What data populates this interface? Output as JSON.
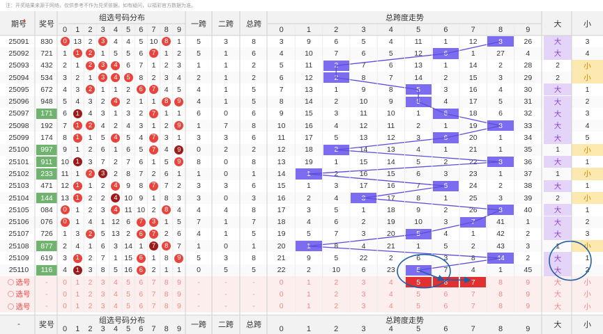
{
  "notice": "注：开奖结果来源于网络，仅供参考不作为兑奖依据，如有疑问，以福彩官方数据为准。",
  "header": {
    "issue": "期号",
    "prize": "奖号",
    "group_dist": "组选号码分布",
    "span1": "一跨",
    "span2": "二跨",
    "total_span": "总跨",
    "trend": "总跨度走势",
    "big": "大",
    "small": "小",
    "digits": [
      "0",
      "1",
      "2",
      "3",
      "4",
      "5",
      "6",
      "7",
      "8",
      "9"
    ],
    "trend_digits": [
      "0",
      "1",
      "2",
      "3",
      "4",
      "5",
      "6",
      "7",
      "8",
      "9"
    ],
    "sort_icon": "sort-arrows-icon"
  },
  "footer": {
    "dash": "-",
    "prize": "奖号",
    "group_dist": "组选号码分布",
    "span1": "一跨",
    "span2": "二跨",
    "total_span": "总跨",
    "trend": "总跨度走势",
    "big": "大",
    "small": "小",
    "digits": [
      "0",
      "1",
      "2",
      "3",
      "4",
      "5",
      "6",
      "7",
      "8",
      "9"
    ],
    "trend_digits": [
      "0",
      "1",
      "2",
      "3",
      "4",
      "5",
      "6",
      "7",
      "8",
      "9"
    ]
  },
  "selection_rows": {
    "label": "选号",
    "dash": "-",
    "digits": [
      "0",
      "1",
      "2",
      "3",
      "4",
      "5",
      "6",
      "7",
      "8",
      "9"
    ],
    "big": "大",
    "small": "小"
  },
  "rows": [
    {
      "issue": "25091",
      "prize": "830",
      "dist": [
        "0",
        "13",
        "2",
        "3",
        "4",
        "4",
        "5",
        "10",
        "8",
        "1"
      ],
      "balls": {
        "0": "red",
        "3": "red",
        "8": "red"
      },
      "s1": "5",
      "s2": "3",
      "ts": "8",
      "trend": [
        "3",
        "9",
        "6",
        "5",
        "4",
        "11",
        "1",
        "12",
        "8",
        "26"
      ],
      "tsval": 8,
      "big": "大",
      "small": "3",
      "bs": "big"
    },
    {
      "issue": "25092",
      "prize": "721",
      "dist": [
        "1",
        "1",
        "2",
        "1",
        "5",
        "5",
        "6",
        "7",
        "1",
        "2"
      ],
      "balls": {
        "1": "red",
        "2": "red",
        "7": "red"
      },
      "s1": "5",
      "s2": "1",
      "ts": "6",
      "trend": [
        "4",
        "10",
        "7",
        "6",
        "5",
        "12",
        "6",
        "1",
        "27",
        "4"
      ],
      "tsval": 6,
      "big": "大",
      "small": "4",
      "bs": "big"
    },
    {
      "issue": "25093",
      "prize": "432",
      "dist": [
        "2",
        "1",
        "2",
        "3",
        "4",
        "6",
        "7",
        "1",
        "2",
        "3"
      ],
      "balls": {
        "2": "red",
        "3": "red",
        "4": "red"
      },
      "s1": "1",
      "s2": "1",
      "ts": "2",
      "trend": [
        "5",
        "11",
        "2",
        "7",
        "6",
        "13",
        "1",
        "14",
        "2",
        "28"
      ],
      "tsval": 2,
      "big": "2",
      "small": "小",
      "bs": "small"
    },
    {
      "issue": "25094",
      "prize": "534",
      "dist": [
        "3",
        "2",
        "1",
        "3",
        "4",
        "5",
        "8",
        "2",
        "3",
        "4"
      ],
      "balls": {
        "3": "red",
        "4": "red",
        "5": "red"
      },
      "s1": "2",
      "s2": "1",
      "ts": "2",
      "trend": [
        "6",
        "12",
        "2",
        "8",
        "7",
        "14",
        "2",
        "15",
        "3",
        "29"
      ],
      "tsval": 2,
      "big": "2",
      "small": "小",
      "bs": "small"
    },
    {
      "issue": "25095",
      "prize": "672",
      "dist": [
        "4",
        "3",
        "2",
        "1",
        "1",
        "2",
        "6",
        "7",
        "4",
        "5"
      ],
      "balls": {
        "2": "red",
        "6": "red",
        "7": "red"
      },
      "s1": "4",
      "s2": "1",
      "ts": "5",
      "trend": [
        "7",
        "13",
        "1",
        "9",
        "8",
        "5",
        "3",
        "16",
        "4",
        "30"
      ],
      "tsval": 5,
      "big": "大",
      "small": "1",
      "bs": "big"
    },
    {
      "issue": "25096",
      "prize": "948",
      "dist": [
        "5",
        "4",
        "3",
        "2",
        "4",
        "2",
        "1",
        "1",
        "8",
        "9"
      ],
      "balls": {
        "4": "red",
        "8": "red",
        "9": "red"
      },
      "s1": "4",
      "s2": "1",
      "ts": "5",
      "trend": [
        "8",
        "14",
        "2",
        "10",
        "9",
        "5",
        "4",
        "17",
        "5",
        "31"
      ],
      "tsval": 5,
      "big": "大",
      "small": "2",
      "bs": "big"
    },
    {
      "issue": "25097",
      "prize": "171",
      "dist": [
        "6",
        "1",
        "4",
        "3",
        "1",
        "3",
        "2",
        "7",
        "1",
        "1"
      ],
      "balls": {
        "1": "dark",
        "7": "red"
      },
      "s1": "6",
      "s2": "0",
      "ts": "6",
      "trend": [
        "9",
        "15",
        "3",
        "11",
        "10",
        "1",
        "6",
        "18",
        "6",
        "32"
      ],
      "tsval": 6,
      "big": "大",
      "small": "3",
      "bs": "big"
    },
    {
      "issue": "25098",
      "prize": "192",
      "dist": [
        "7",
        "1",
        "2",
        "4",
        "2",
        "4",
        "3",
        "1",
        "2",
        "9"
      ],
      "balls": {
        "1": "red",
        "2": "red",
        "9": "red"
      },
      "s1": "1",
      "s2": "7",
      "ts": "8",
      "trend": [
        "10",
        "16",
        "4",
        "12",
        "11",
        "2",
        "1",
        "19",
        "8",
        "33"
      ],
      "tsval": 8,
      "big": "大",
      "small": "4",
      "bs": "big"
    },
    {
      "issue": "25099",
      "prize": "174",
      "dist": [
        "8",
        "1",
        "1",
        "5",
        "4",
        "5",
        "4",
        "7",
        "3",
        "1"
      ],
      "balls": {
        "1": "red",
        "4": "red",
        "7": "red"
      },
      "s1": "3",
      "s2": "3",
      "ts": "6",
      "trend": [
        "11",
        "17",
        "5",
        "13",
        "12",
        "3",
        "6",
        "20",
        "1",
        "34"
      ],
      "tsval": 6,
      "big": "大",
      "small": "5",
      "bs": "big"
    },
    {
      "issue": "25100",
      "prize": "997",
      "dist": [
        "9",
        "1",
        "2",
        "6",
        "1",
        "6",
        "5",
        "7",
        "4",
        "9"
      ],
      "balls": {
        "7": "red",
        "9": "dark"
      },
      "s1": "0",
      "s2": "2",
      "ts": "2",
      "trend": [
        "12",
        "18",
        "2",
        "14",
        "13",
        "4",
        "1",
        "21",
        "1",
        "35"
      ],
      "tsval": 2,
      "big": "1",
      "small": "小",
      "bs": "small"
    },
    {
      "issue": "25101",
      "prize": "911",
      "dist": [
        "10",
        "1",
        "3",
        "7",
        "2",
        "7",
        "6",
        "1",
        "5",
        "9"
      ],
      "balls": {
        "1": "dark",
        "9": "red"
      },
      "s1": "8",
      "s2": "0",
      "ts": "8",
      "trend": [
        "13",
        "19",
        "1",
        "15",
        "14",
        "5",
        "2",
        "22",
        "8",
        "36"
      ],
      "tsval": 8,
      "big": "大",
      "small": "1",
      "bs": "big"
    },
    {
      "issue": "25102",
      "prize": "233",
      "dist": [
        "11",
        "1",
        "2",
        "3",
        "2",
        "8",
        "7",
        "2",
        "6",
        "1"
      ],
      "balls": {
        "2": "red",
        "3": "dark"
      },
      "s1": "1",
      "s2": "0",
      "ts": "1",
      "trend": [
        "14",
        "1",
        "2",
        "16",
        "15",
        "6",
        "3",
        "23",
        "1",
        "37"
      ],
      "tsval": 1,
      "big": "1",
      "small": "小",
      "bs": "small"
    },
    {
      "issue": "25103",
      "prize": "471",
      "dist": [
        "12",
        "1",
        "1",
        "2",
        "4",
        "9",
        "8",
        "7",
        "7",
        "2"
      ],
      "balls": {
        "1": "red",
        "4": "red",
        "7": "red"
      },
      "s1": "3",
      "s2": "3",
      "ts": "6",
      "trend": [
        "15",
        "1",
        "3",
        "17",
        "16",
        "7",
        "6",
        "24",
        "2",
        "38"
      ],
      "tsval": 6,
      "big": "大",
      "small": "1",
      "bs": "big"
    },
    {
      "issue": "25104",
      "prize": "144",
      "dist": [
        "13",
        "1",
        "2",
        "2",
        "4",
        "10",
        "9",
        "1",
        "8",
        "3"
      ],
      "balls": {
        "1": "red",
        "4": "dark"
      },
      "s1": "3",
      "s2": "0",
      "ts": "3",
      "trend": [
        "16",
        "2",
        "4",
        "3",
        "17",
        "8",
        "1",
        "25",
        "3",
        "39"
      ],
      "tsval": 3,
      "big": "2",
      "small": "小",
      "bs": "small"
    },
    {
      "issue": "25105",
      "prize": "084",
      "dist": [
        "0",
        "1",
        "2",
        "3",
        "4",
        "11",
        "10",
        "2",
        "8",
        "4"
      ],
      "balls": {
        "0": "red",
        "4": "red",
        "8": "red"
      },
      "s1": "4",
      "s2": "4",
      "ts": "8",
      "trend": [
        "17",
        "3",
        "5",
        "1",
        "18",
        "9",
        "2",
        "26",
        "8",
        "40"
      ],
      "tsval": 8,
      "big": "大",
      "small": "1",
      "bs": "big"
    },
    {
      "issue": "25106",
      "prize": "076",
      "dist": [
        "0",
        "1",
        "4",
        "1",
        "12",
        "6",
        "7",
        "3",
        "1",
        "5"
      ],
      "balls": {
        "0": "red",
        "6": "red",
        "7": "red"
      },
      "s1": "7",
      "s2": "1",
      "ts": "7",
      "trend": [
        "18",
        "4",
        "6",
        "2",
        "19",
        "10",
        "3",
        "7",
        "41",
        "1"
      ],
      "tsval": 7,
      "big": "大",
      "small": "2",
      "bs": "big"
    },
    {
      "issue": "25107",
      "prize": "726",
      "dist": [
        "1",
        "3",
        "2",
        "5",
        "13",
        "2",
        "6",
        "7",
        "2",
        "6"
      ],
      "balls": {
        "2": "red",
        "6": "red",
        "7": "red"
      },
      "s1": "4",
      "s2": "1",
      "ts": "5",
      "trend": [
        "19",
        "5",
        "7",
        "3",
        "20",
        "5",
        "4",
        "1",
        "42",
        "2"
      ],
      "tsval": 5,
      "big": "大",
      "small": "3",
      "bs": "big"
    },
    {
      "issue": "25108",
      "prize": "877",
      "dist": [
        "2",
        "4",
        "1",
        "6",
        "3",
        "14",
        "1",
        "7",
        "8",
        "7"
      ],
      "balls": {
        "7": "dark",
        "8": "red"
      },
      "s1": "1",
      "s2": "0",
      "ts": "1",
      "trend": [
        "20",
        "1",
        "8",
        "4",
        "21",
        "1",
        "5",
        "2",
        "43",
        "3"
      ],
      "tsval": 1,
      "big": "1",
      "small": "小",
      "bs": "small"
    },
    {
      "issue": "25109",
      "prize": "619",
      "dist": [
        "3",
        "1",
        "2",
        "7",
        "1",
        "15",
        "6",
        "1",
        "8",
        "9"
      ],
      "balls": {
        "1": "red",
        "6": "red",
        "9": "red"
      },
      "s1": "5",
      "s2": "3",
      "ts": "8",
      "trend": [
        "21",
        "9",
        "5",
        "22",
        "2",
        "6",
        "3",
        "8",
        "44",
        "2"
      ],
      "tsval": 8,
      "big": "大",
      "small": "1",
      "bs": "big"
    },
    {
      "issue": "25110",
      "prize": "116",
      "dist": [
        "4",
        "1",
        "3",
        "8",
        "5",
        "16",
        "6",
        "2",
        "1",
        "1"
      ],
      "balls": {
        "1": "dark",
        "6": "red"
      },
      "s1": "0",
      "s2": "5",
      "ts": "5",
      "trend": [
        "22",
        "2",
        "10",
        "6",
        "23",
        "5",
        "7",
        "4",
        "1",
        "45"
      ],
      "tsval": 5,
      "big": "大",
      "small": "2",
      "bs": "big"
    }
  ],
  "colors": {
    "ball_red": "#e8443c",
    "ball_dark": "#9c1a1a",
    "prize_highlight": "#6fb36f",
    "trend_box": "#7c6cf0",
    "trend_line": "#5b4ed8",
    "big_bg": "#e4d4f7",
    "small_bg": "#fde8b0",
    "selection_bg": "#fdeeee",
    "header_bg": "#f2f2f2",
    "annotation_blue": "#1f5fa8",
    "annotation_red": "#e03030"
  }
}
